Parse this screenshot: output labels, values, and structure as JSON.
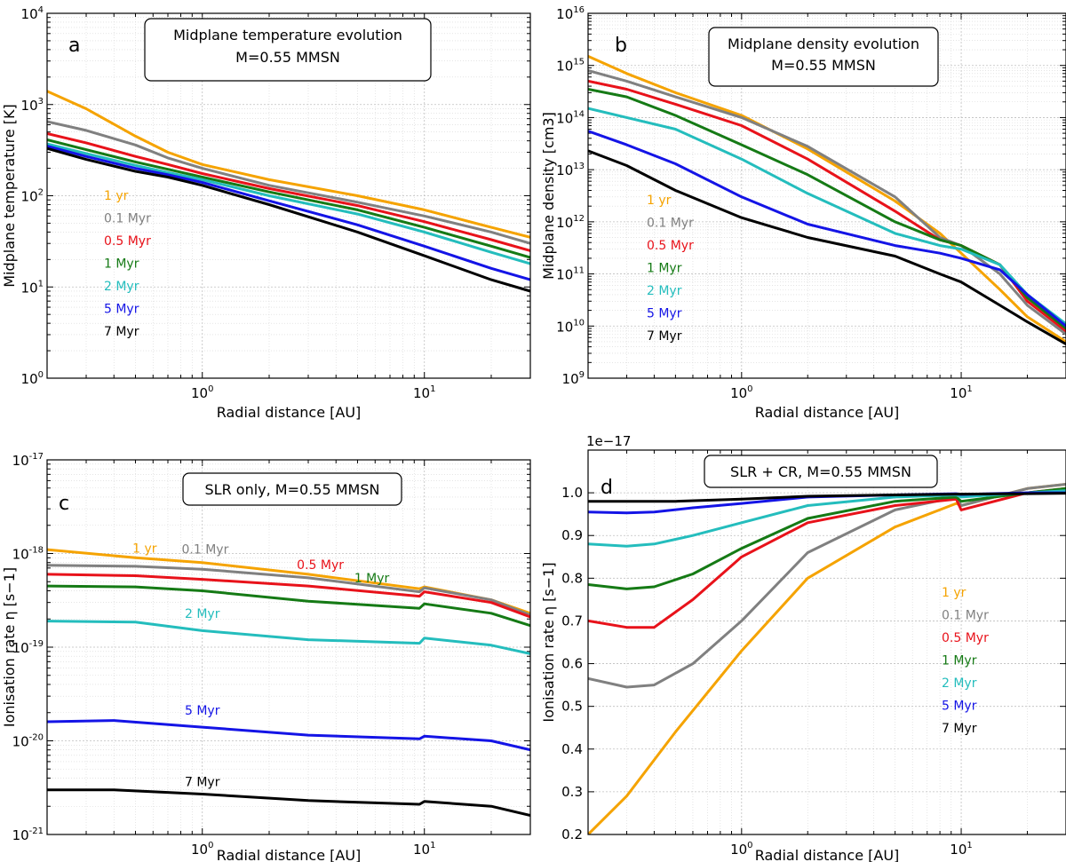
{
  "colors": {
    "1 yr": "#f5a300",
    "0.1 Myr": "#808080",
    "0.5 Myr": "#e8121a",
    "1 Myr": "#157a15",
    "2 Myr": "#24bdbd",
    "5 Myr": "#1414e6",
    "7 Myr": "#000000"
  },
  "chart_data": [
    {
      "id": "a",
      "type": "line",
      "xscale": "log",
      "yscale": "log",
      "xlim": [
        0.2,
        30
      ],
      "ylim": [
        1,
        10000
      ],
      "panel_letter": "a",
      "title_lines": [
        "Midplane temperature evolution",
        "M=0.55 MMSN"
      ],
      "xlabel": "Radial distance [AU]",
      "ylabel": "Midplane temperature [K]",
      "x_ticks": [
        {
          "base": "10",
          "exp": "0"
        },
        {
          "base": "10",
          "exp": "1"
        }
      ],
      "y_ticks": [
        {
          "base": "10",
          "exp": "0"
        },
        {
          "base": "10",
          "exp": "1"
        },
        {
          "base": "10",
          "exp": "2"
        },
        {
          "base": "10",
          "exp": "3"
        },
        {
          "base": "10",
          "exp": "4"
        }
      ],
      "legend": [
        "1 yr",
        "0.1 Myr",
        "0.5 Myr",
        "1 Myr",
        "2 Myr",
        "5 Myr",
        "7 Myr"
      ],
      "series": [
        {
          "name": "1 yr",
          "x": [
            0.2,
            0.3,
            0.5,
            0.7,
            1,
            2,
            5,
            10,
            20,
            30
          ],
          "y": [
            1400,
            900,
            450,
            300,
            220,
            150,
            100,
            70,
            45,
            35
          ]
        },
        {
          "name": "0.1 Myr",
          "x": [
            0.2,
            0.3,
            0.5,
            0.7,
            1,
            2,
            5,
            10,
            20,
            30
          ],
          "y": [
            650,
            520,
            360,
            260,
            200,
            130,
            85,
            60,
            40,
            30
          ]
        },
        {
          "name": "0.5 Myr",
          "x": [
            0.2,
            0.3,
            0.5,
            0.7,
            1,
            2,
            5,
            10,
            20,
            30
          ],
          "y": [
            480,
            380,
            270,
            220,
            175,
            120,
            78,
            52,
            33,
            25
          ]
        },
        {
          "name": "1 Myr",
          "x": [
            0.2,
            0.3,
            0.5,
            0.7,
            1,
            2,
            5,
            10,
            20,
            30
          ],
          "y": [
            410,
            320,
            235,
            195,
            160,
            110,
            70,
            45,
            28,
            21
          ]
        },
        {
          "name": "2 Myr",
          "x": [
            0.2,
            0.3,
            0.5,
            0.7,
            1,
            2,
            5,
            10,
            20,
            30
          ],
          "y": [
            370,
            290,
            215,
            180,
            150,
            100,
            63,
            40,
            24,
            18
          ]
        },
        {
          "name": "5 Myr",
          "x": [
            0.2,
            0.3,
            0.5,
            0.7,
            1,
            2,
            5,
            10,
            20,
            30
          ],
          "y": [
            350,
            270,
            200,
            170,
            140,
            88,
            48,
            28,
            16,
            12
          ]
        },
        {
          "name": "7 Myr",
          "x": [
            0.2,
            0.3,
            0.5,
            0.7,
            1,
            2,
            5,
            10,
            20,
            30
          ],
          "y": [
            330,
            250,
            185,
            160,
            130,
            80,
            40,
            22,
            12,
            9
          ]
        }
      ]
    },
    {
      "id": "b",
      "type": "line",
      "xscale": "log",
      "yscale": "log",
      "xlim": [
        0.2,
        30
      ],
      "ylim": [
        1000000000.0,
        1e+16
      ],
      "panel_letter": "b",
      "title_lines": [
        "Midplane density evolution",
        "M=0.55 MMSN"
      ],
      "xlabel": "Radial distance [AU]",
      "ylabel": "Midplane density [cm3]",
      "x_ticks": [
        {
          "base": "10",
          "exp": "0"
        },
        {
          "base": "10",
          "exp": "1"
        }
      ],
      "y_ticks": [
        {
          "base": "10",
          "exp": "9"
        },
        {
          "base": "10",
          "exp": "10"
        },
        {
          "base": "10",
          "exp": "11"
        },
        {
          "base": "10",
          "exp": "12"
        },
        {
          "base": "10",
          "exp": "13"
        },
        {
          "base": "10",
          "exp": "14"
        },
        {
          "base": "10",
          "exp": "15"
        },
        {
          "base": "10",
          "exp": "16"
        }
      ],
      "legend": [
        "1 yr",
        "0.1 Myr",
        "0.5 Myr",
        "1 Myr",
        "2 Myr",
        "5 Myr",
        "7 Myr"
      ],
      "series": [
        {
          "name": "1 yr",
          "x": [
            0.2,
            0.3,
            0.5,
            1,
            2,
            5,
            8,
            10,
            15,
            20,
            30
          ],
          "y": [
            1500000000000000.0,
            700000000000000.0,
            300000000000000.0,
            110000000000000.0,
            25000000000000.0,
            2500000000000.0,
            600000000000.0,
            250000000000.0,
            50000000000.0,
            15000000000.0,
            5000000000.0
          ]
        },
        {
          "name": "0.1 Myr",
          "x": [
            0.2,
            0.3,
            0.5,
            1,
            2,
            5,
            8,
            10,
            15,
            20,
            30
          ],
          "y": [
            800000000000000.0,
            500000000000000.0,
            250000000000000.0,
            100000000000000.0,
            28000000000000.0,
            3000000000000.0,
            500000000000.0,
            350000000000.0,
            100000000000.0,
            25000000000.0,
            7000000000.0
          ]
        },
        {
          "name": "0.5 Myr",
          "x": [
            0.2,
            0.3,
            0.5,
            1,
            2,
            5,
            8,
            10,
            15,
            20,
            30
          ],
          "y": [
            500000000000000.0,
            350000000000000.0,
            180000000000000.0,
            70000000000000.0,
            16000000000000.0,
            1600000000000.0,
            450000000000.0,
            350000000000.0,
            150000000000.0,
            30000000000.0,
            8000000000.0
          ]
        },
        {
          "name": "1 Myr",
          "x": [
            0.2,
            0.3,
            0.5,
            1,
            2,
            5,
            8,
            10,
            15,
            20,
            30
          ],
          "y": [
            350000000000000.0,
            250000000000000.0,
            110000000000000.0,
            30000000000000.0,
            8000000000000.0,
            1000000000000.0,
            450000000000.0,
            350000000000.0,
            150000000000.0,
            35000000000.0,
            9000000000.0
          ]
        },
        {
          "name": "2 Myr",
          "x": [
            0.2,
            0.3,
            0.5,
            1,
            2,
            5,
            8,
            10,
            15,
            20,
            30
          ],
          "y": [
            150000000000000.0,
            100000000000000.0,
            60000000000000.0,
            16000000000000.0,
            3500000000000.0,
            600000000000.0,
            350000000000.0,
            300000000000.0,
            150000000000.0,
            40000000000.0,
            11000000000.0
          ]
        },
        {
          "name": "5 Myr",
          "x": [
            0.2,
            0.3,
            0.5,
            1,
            2,
            5,
            8,
            10,
            15,
            20,
            30
          ],
          "y": [
            55000000000000.0,
            30000000000000.0,
            13000000000000.0,
            3000000000000.0,
            900000000000.0,
            350000000000.0,
            250000000000.0,
            200000000000.0,
            120000000000.0,
            40000000000.0,
            10000000000.0
          ]
        },
        {
          "name": "7 Myr",
          "x": [
            0.2,
            0.3,
            0.5,
            1,
            2,
            5,
            8,
            10,
            15,
            20,
            30
          ],
          "y": [
            23000000000000.0,
            12000000000000.0,
            4000000000000.0,
            1200000000000.0,
            500000000000.0,
            220000000000.0,
            100000000000.0,
            70000000000.0,
            25000000000.0,
            12000000000.0,
            4500000000.0
          ]
        }
      ]
    },
    {
      "id": "c",
      "type": "line",
      "xscale": "log",
      "yscale": "log",
      "xlim": [
        0.2,
        30
      ],
      "ylim": [
        1e-21,
        1e-17
      ],
      "panel_letter": "c",
      "title_lines": [
        "SLR only, M=0.55 MMSN"
      ],
      "xlabel": "Radial distance [AU]",
      "ylabel": "Ionisation rate η [s−1]",
      "x_ticks": [
        {
          "base": "10",
          "exp": "0"
        },
        {
          "base": "10",
          "exp": "1"
        }
      ],
      "y_ticks": [
        {
          "base": "10",
          "exp": "-21"
        },
        {
          "base": "10",
          "exp": "-20"
        },
        {
          "base": "10",
          "exp": "-19"
        },
        {
          "base": "10",
          "exp": "-18"
        },
        {
          "base": "10",
          "exp": "-17"
        }
      ],
      "series": [
        {
          "name": "1 yr",
          "x": [
            0.2,
            0.5,
            1,
            3,
            9.5,
            10,
            20,
            30
          ],
          "y": [
            1.1e-18,
            9e-19,
            8e-19,
            6e-19,
            4.2e-19,
            4.4e-19,
            3.2e-19,
            2.3e-19
          ]
        },
        {
          "name": "0.1 Myr",
          "x": [
            0.2,
            0.5,
            1,
            3,
            9.5,
            10,
            20,
            30
          ],
          "y": [
            7.5e-19,
            7.3e-19,
            6.8e-19,
            5.5e-19,
            3.9e-19,
            4.3e-19,
            3.2e-19,
            2.2e-19
          ]
        },
        {
          "name": "0.5 Myr",
          "x": [
            0.2,
            0.5,
            1,
            3,
            9.5,
            10,
            20,
            30
          ],
          "y": [
            6e-19,
            5.8e-19,
            5.3e-19,
            4.5e-19,
            3.5e-19,
            3.9e-19,
            3e-19,
            2.1e-19
          ]
        },
        {
          "name": "1 Myr",
          "x": [
            0.2,
            0.5,
            1,
            3,
            9.5,
            10,
            20,
            30
          ],
          "y": [
            4.5e-19,
            4.4e-19,
            4e-19,
            3.1e-19,
            2.6e-19,
            2.9e-19,
            2.3e-19,
            1.7e-19
          ]
        },
        {
          "name": "2 Myr",
          "x": [
            0.2,
            0.5,
            1,
            3,
            9.5,
            10,
            20,
            30
          ],
          "y": [
            1.9e-19,
            1.85e-19,
            1.5e-19,
            1.2e-19,
            1.1e-19,
            1.25e-19,
            1.05e-19,
            8.5e-20
          ]
        },
        {
          "name": "5 Myr",
          "x": [
            0.2,
            0.4,
            1,
            3,
            9.5,
            10,
            20,
            30
          ],
          "y": [
            1.6e-20,
            1.65e-20,
            1.4e-20,
            1.15e-20,
            1.05e-20,
            1.12e-20,
            1e-20,
            8e-21
          ]
        },
        {
          "name": "7 Myr",
          "x": [
            0.2,
            0.4,
            1,
            3,
            9.5,
            10,
            20,
            30
          ],
          "y": [
            3e-21,
            3e-21,
            2.7e-21,
            2.3e-21,
            2.1e-21,
            2.25e-21,
            2e-21,
            1.6e-21
          ]
        }
      ],
      "labels": [
        {
          "text": "1 yr",
          "x": 0.55,
          "y": 1.02e-18
        },
        {
          "text": "0.1 Myr",
          "x": 1.03,
          "y": 1e-18
        },
        {
          "text": "0.5 Myr",
          "x": 3.4,
          "y": 6.8e-19
        },
        {
          "text": "1 Myr",
          "x": 5.8,
          "y": 4.9e-19
        },
        {
          "text": "2 Myr",
          "x": 1.0,
          "y": 2.05e-19
        },
        {
          "text": "5 Myr",
          "x": 1.0,
          "y": 1.9e-20
        },
        {
          "text": "7 Myr",
          "x": 1.0,
          "y": 3.3e-21
        }
      ]
    },
    {
      "id": "d",
      "type": "line",
      "xscale": "log",
      "yscale": "linear",
      "xlim": [
        0.2,
        30
      ],
      "ylim": [
        0.2,
        1.1
      ],
      "panel_letter": "d",
      "title_lines": [
        "SLR + CR, M=0.55 MMSN"
      ],
      "offset_label": "1e−17",
      "xlabel": "Radial distance [AU]",
      "ylabel": "Ionisation rate η [s−1]",
      "x_ticks": [
        {
          "base": "10",
          "exp": "0"
        },
        {
          "base": "10",
          "exp": "1"
        }
      ],
      "y_ticks": [
        "0.2",
        "0.3",
        "0.4",
        "0.5",
        "0.6",
        "0.7",
        "0.8",
        "0.9",
        "1.0"
      ],
      "legend": [
        "1 yr",
        "0.1 Myr",
        "0.5 Myr",
        "1 Myr",
        "2 Myr",
        "5 Myr",
        "7 Myr"
      ],
      "series": [
        {
          "name": "1 yr",
          "x": [
            0.2,
            0.3,
            0.5,
            1,
            2,
            5,
            9.5,
            10,
            20,
            30
          ],
          "y": [
            0.2,
            0.29,
            0.44,
            0.63,
            0.8,
            0.92,
            0.975,
            0.97,
            1.01,
            1.02
          ]
        },
        {
          "name": "0.1 Myr",
          "x": [
            0.2,
            0.3,
            0.4,
            0.6,
            1,
            2,
            5,
            9.5,
            10,
            20,
            30
          ],
          "y": [
            0.565,
            0.545,
            0.55,
            0.6,
            0.7,
            0.86,
            0.96,
            0.99,
            0.97,
            1.01,
            1.02
          ]
        },
        {
          "name": "0.5 Myr",
          "x": [
            0.2,
            0.3,
            0.4,
            0.6,
            1,
            2,
            5,
            9.5,
            10,
            20,
            30
          ],
          "y": [
            0.7,
            0.685,
            0.685,
            0.75,
            0.85,
            0.93,
            0.97,
            0.985,
            0.96,
            1.0,
            1.01
          ]
        },
        {
          "name": "1 Myr",
          "x": [
            0.2,
            0.3,
            0.4,
            0.6,
            1,
            2,
            5,
            9.5,
            10,
            20,
            30
          ],
          "y": [
            0.785,
            0.775,
            0.78,
            0.81,
            0.87,
            0.94,
            0.98,
            0.99,
            0.98,
            1.0,
            1.01
          ]
        },
        {
          "name": "2 Myr",
          "x": [
            0.2,
            0.3,
            0.4,
            0.6,
            1,
            2,
            5,
            9.5,
            10,
            20,
            30
          ],
          "y": [
            0.88,
            0.875,
            0.88,
            0.9,
            0.93,
            0.97,
            0.99,
            0.995,
            0.99,
            1.0,
            1.005
          ]
        },
        {
          "name": "5 Myr",
          "x": [
            0.2,
            0.3,
            0.4,
            0.6,
            1,
            2,
            5,
            9.5,
            10,
            20,
            30
          ],
          "y": [
            0.955,
            0.953,
            0.955,
            0.965,
            0.975,
            0.99,
            0.995,
            0.998,
            0.996,
            1.0,
            1.0
          ]
        },
        {
          "name": "7 Myr",
          "x": [
            0.2,
            0.3,
            0.5,
            1,
            2,
            5,
            10,
            20,
            30
          ],
          "y": [
            0.98,
            0.98,
            0.98,
            0.985,
            0.992,
            0.995,
            0.997,
            0.998,
            0.999
          ]
        }
      ]
    }
  ]
}
